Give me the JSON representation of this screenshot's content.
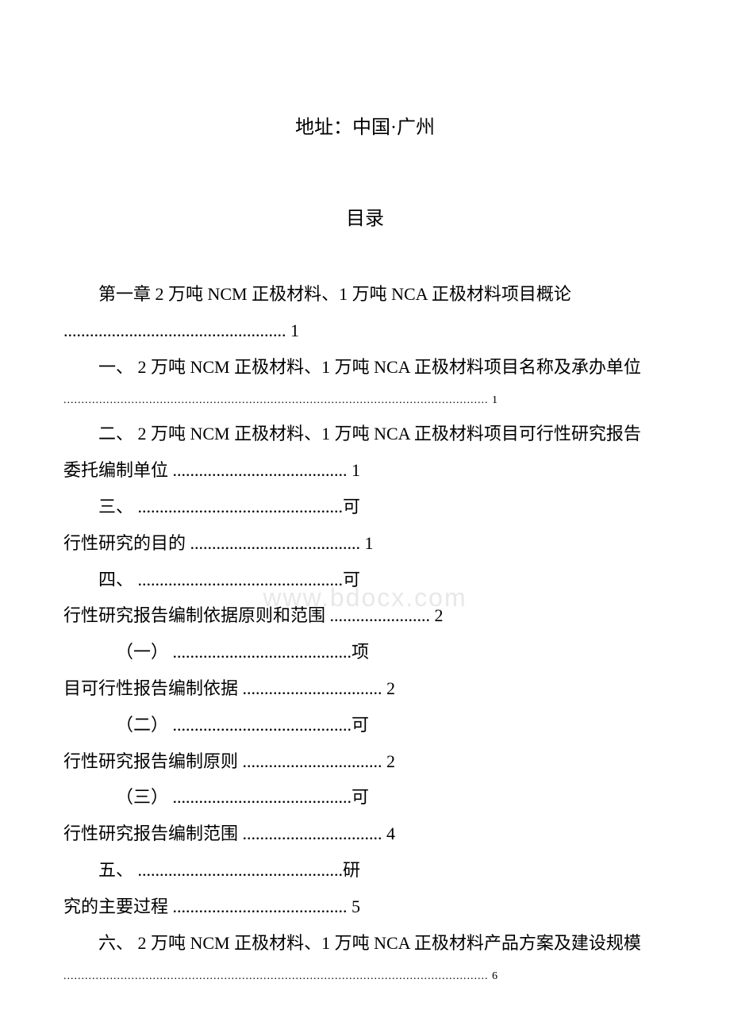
{
  "address": "地址：中国·广州",
  "toc_title": "目录",
  "watermark": "www.bdocx.com",
  "entries": {
    "ch1": "第一章  2 万吨 NCM 正极材料、1 万吨 NCA 正极材料项目概论",
    "ch1_dots": "................................................... 1",
    "s1": "一、 2 万吨 NCM 正极材料、1 万吨 NCA 正极材料项目名称及承办单位",
    "s1_dots": "....................................................................................................................... 1",
    "s2": "二、 2 万吨 NCM 正极材料、1 万吨 NCA 正极材料项目可行性研究报告",
    "s2_sub": "委托编制单位 ........................................ 1",
    "s3_a": "三、 ...............................................可",
    "s3_b": "行性研究的目的 ....................................... 1",
    "s4_a": "四、 ...............................................可",
    "s4_b": "行性研究报告编制依据原则和范围 ....................... 2",
    "sub1_a": "（一） .........................................项",
    "sub1_b": "目可行性报告编制依据 ................................ 2",
    "sub2_a": "（二） .........................................可",
    "sub2_b": "行性研究报告编制原则 ................................ 2",
    "sub3_a": "（三） .........................................可",
    "sub3_b": "行性研究报告编制范围 ................................ 4",
    "s5_a": "五、 ...............................................研",
    "s5_b": "究的主要过程 ........................................ 5",
    "s6": "六、 2 万吨 NCM 正极材料、1 万吨 NCA 正极材料产品方案及建设规模",
    "s6_dots": "....................................................................................................................... 6"
  },
  "colors": {
    "text": "#000000",
    "background": "#ffffff",
    "watermark": "#e8e8e8"
  },
  "typography": {
    "body_fontsize": 22,
    "title_fontsize": 24,
    "font_family": "SimSun"
  }
}
